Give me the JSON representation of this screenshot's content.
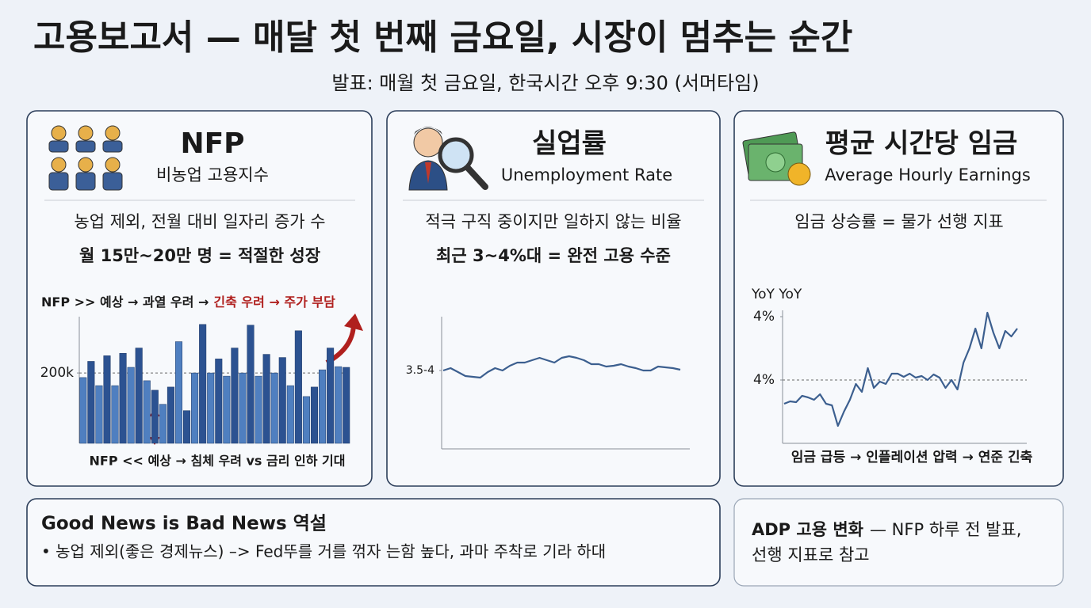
{
  "header": {
    "title": "고용보고서 — 매달 첫 번째 금요일, 시장이 멈추는 순간",
    "subtitle": "발표: 매월 첫 금요일, 한국시간 오후 9:30 (서머타임)"
  },
  "highlight_color": "#b0201e",
  "panels": [
    {
      "heading": "NFP",
      "subheading": "비농업 고용지수",
      "description": "농업 제외, 전월 대비 일자리 증가 수",
      "key_point": "월 15만~20만 명 = 적절한 성장",
      "annotation_top": [
        "NFP >> 예상 → 과열 우려 →",
        "긴축 우려 → 주가 부담"
      ],
      "annotation_bottom": "NFP << 예상 → 침체 우려 vs 금리 인하 기대",
      "chart": {
        "type": "bar",
        "values": [
          187,
          233,
          164,
          249,
          164,
          256,
          216,
          271,
          178,
          151,
          111,
          160,
          289,
          93,
          200,
          338,
          200,
          240,
          191,
          271,
          200,
          336,
          191,
          253,
          200,
          244,
          164,
          320,
          133,
          160,
          209,
          271,
          218,
          216
        ],
        "colors": [
          "#4f7fc0",
          "#2c5291"
        ],
        "ylim": [
          0,
          360
        ],
        "yticks": [
          {
            "value": 200,
            "label": "200k"
          }
        ],
        "reference_line": 200
      }
    },
    {
      "heading": "실업률",
      "subheading": "Unemployment Rate",
      "description": "적극 구직 중이지만 일하지 않는 비율",
      "key_point": "최근 3~4%대 = 완전 고용 수준",
      "chart": {
        "type": "line",
        "values": [
          3.75,
          3.78,
          3.73,
          3.68,
          3.67,
          3.66,
          3.73,
          3.78,
          3.75,
          3.81,
          3.85,
          3.85,
          3.88,
          3.91,
          3.88,
          3.85,
          3.91,
          3.93,
          3.91,
          3.88,
          3.83,
          3.83,
          3.8,
          3.81,
          3.83,
          3.8,
          3.78,
          3.75,
          3.75,
          3.8,
          3.79,
          3.78,
          3.76
        ],
        "color": "#3c5f8f",
        "ylim": [
          2.76,
          4.43
        ],
        "yticks": [
          {
            "value": 3.75,
            "label": "3.5-4"
          }
        ]
      }
    },
    {
      "heading": "평균 시간당 임금",
      "subheading": "Average Hourly Earnings",
      "description": "임금 상승률 = 물가 선행 지표",
      "annotation_bottom": "임금 급등 → 인플레이션 압력 → 연준 긴축",
      "chart": {
        "type": "line",
        "y_label": "YoY YoY",
        "values": [
          3.3,
          3.33,
          3.32,
          3.4,
          3.38,
          3.35,
          3.42,
          3.3,
          3.28,
          3.02,
          3.2,
          3.35,
          3.55,
          3.45,
          3.75,
          3.5,
          3.58,
          3.55,
          3.68,
          3.68,
          3.64,
          3.68,
          3.63,
          3.65,
          3.6,
          3.67,
          3.63,
          3.5,
          3.6,
          3.48,
          3.82,
          4.0,
          4.25,
          4.0,
          4.45,
          4.2,
          4.0,
          4.22,
          4.15,
          4.25
        ],
        "color": "#3c5f8f",
        "ylim": [
          2.8,
          4.48
        ],
        "yticks": [
          {
            "value": 4.4,
            "label": "4%"
          },
          {
            "value": 3.6,
            "label": "4%"
          }
        ],
        "reference_line": 3.6
      }
    }
  ],
  "footer": {
    "left": {
      "title": "Good News is Bad News 역설",
      "bullet": "• 농업 제외(좋은 경제뉴스) –> Fed뚜를 거를 꺾자 는함 높다,  과마 주착로 기라 하대"
    },
    "right": {
      "bold": "ADP 고용 변화",
      "lines": [
        "— NFP 하루 전 발표,",
        "선행 지표로 참고"
      ]
    }
  }
}
